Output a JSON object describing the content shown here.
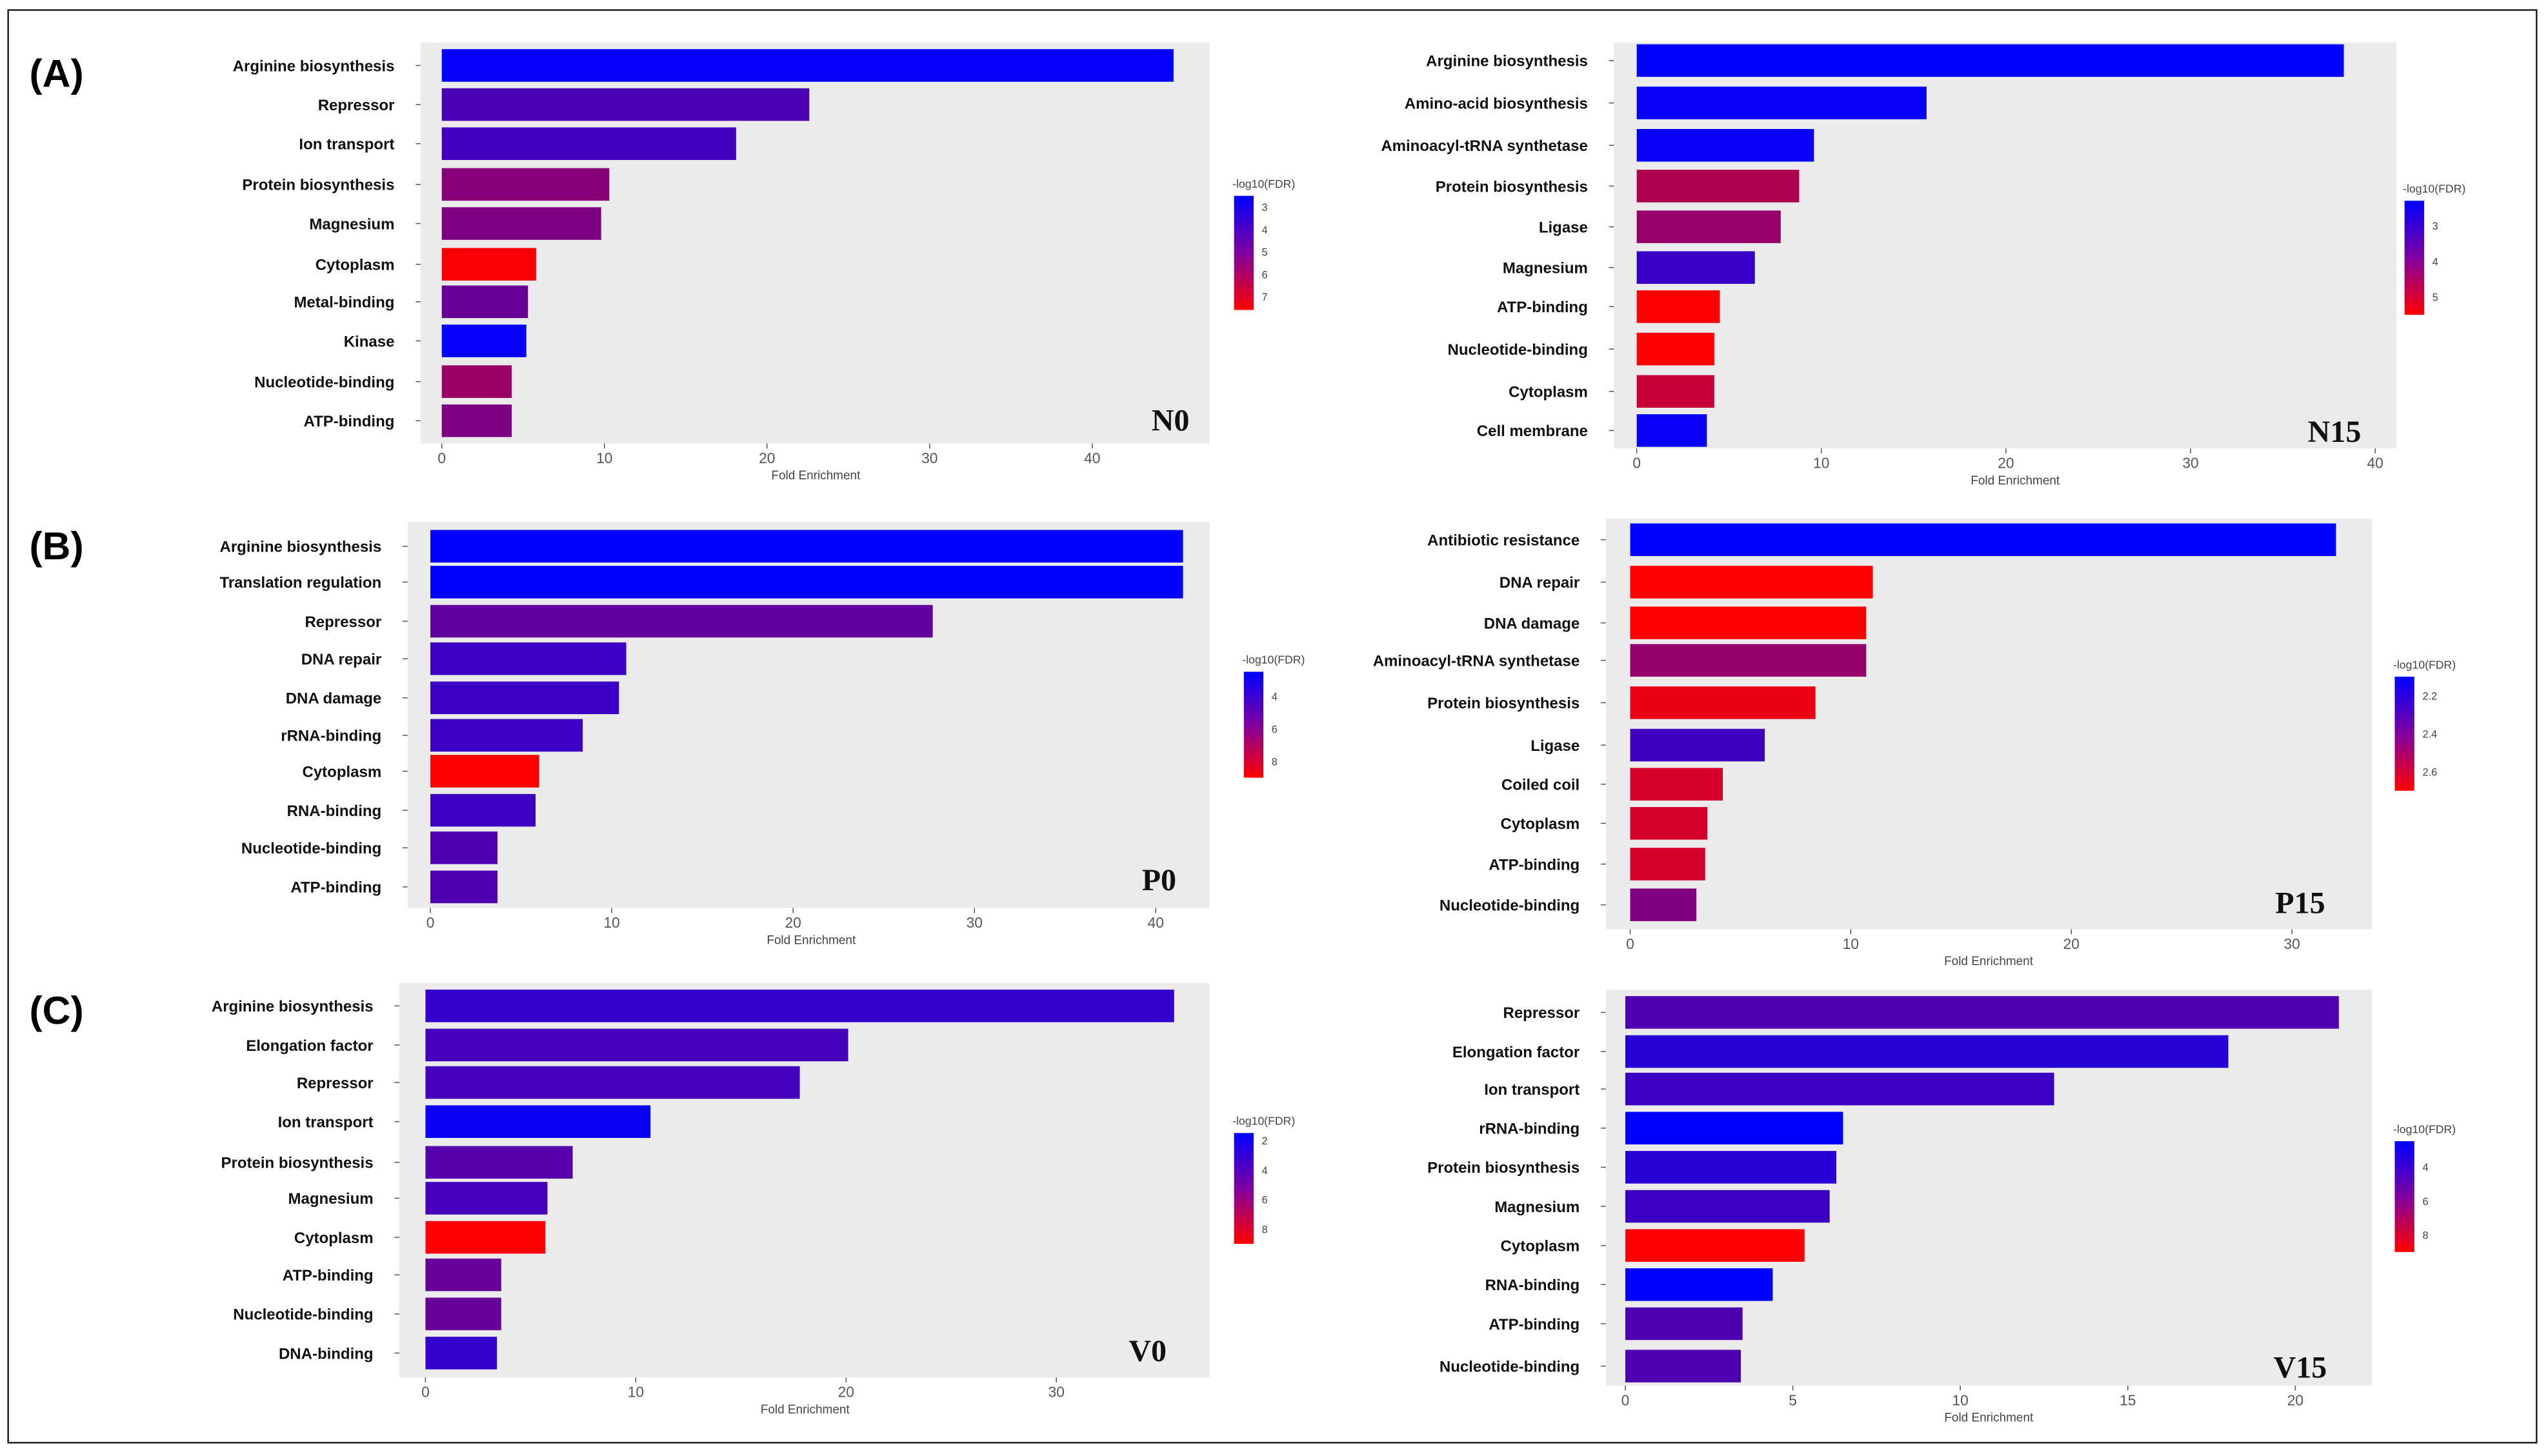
{
  "sections": [
    "(A)",
    "(B)",
    "(C)"
  ],
  "legend_title": "-log10(FDR)",
  "colors": {
    "low": "#0000ff",
    "high": "#ff0000",
    "panel_bg": "#ebebeb"
  },
  "chart_data": [
    {
      "type": "bar",
      "orientation": "horizontal",
      "tag": "N0",
      "xlabel": "Fold Enrichment",
      "xticks": [
        0,
        10,
        20,
        30,
        40
      ],
      "xlim": [
        -1,
        47
      ],
      "legend": {
        "title": "-log10(FDR)",
        "range": [
          2.5,
          7.6
        ],
        "ticks": [
          3,
          4,
          5,
          6,
          7
        ]
      },
      "categories": [
        "Arginine biosynthesis",
        "Repressor",
        "Ion transport",
        "Protein biosynthesis",
        "Magnesium",
        "Cytoplasm",
        "Metal-binding",
        "Kinase",
        "Nucleotide-binding",
        "ATP-binding"
      ],
      "values": [
        45.0,
        22.6,
        18.1,
        10.3,
        9.8,
        5.8,
        5.3,
        5.2,
        4.3,
        4.3
      ],
      "color_values": [
        2.6,
        4.0,
        3.8,
        5.2,
        5.0,
        7.5,
        4.6,
        2.6,
        5.6,
        5.0
      ]
    },
    {
      "type": "bar",
      "orientation": "horizontal",
      "tag": "N15",
      "xlabel": "Fold Enrichment",
      "xticks": [
        0,
        10,
        20,
        30,
        40
      ],
      "xlim": [
        -1,
        42
      ],
      "legend": {
        "title": "-log10(FDR)",
        "range": [
          2.3,
          5.5
        ],
        "ticks": [
          3,
          4,
          5
        ]
      },
      "categories": [
        "Arginine biosynthesis",
        "Amino-acid biosynthesis",
        "Aminoacyl-tRNA synthetase",
        "Protein biosynthesis",
        "Ligase",
        "Magnesium",
        "ATP-binding",
        "Nucleotide-binding",
        "Cytoplasm",
        "Cell membrane"
      ],
      "values": [
        38.3,
        15.7,
        9.6,
        8.8,
        7.8,
        6.4,
        4.5,
        4.2,
        4.2,
        3.8
      ],
      "color_values": [
        2.3,
        2.4,
        2.4,
        4.5,
        4.2,
        3.0,
        5.5,
        5.5,
        4.8,
        2.4
      ]
    },
    {
      "type": "bar",
      "orientation": "horizontal",
      "tag": "P0",
      "xlabel": "Fold Enrichment",
      "xticks": [
        0,
        10,
        20,
        30,
        40
      ],
      "xlim": [
        -1,
        43
      ],
      "legend": {
        "title": "-log10(FDR)",
        "range": [
          2.5,
          9.0
        ],
        "ticks": [
          4,
          6,
          8
        ]
      },
      "categories": [
        "Arginine biosynthesis",
        "Translation regulation",
        "Repressor",
        "DNA repair",
        "DNA damage",
        "rRNA-binding",
        "Cytoplasm",
        "RNA-binding",
        "Nucleotide-binding",
        "ATP-binding"
      ],
      "values": [
        41.5,
        41.5,
        27.7,
        10.8,
        10.4,
        8.4,
        6.0,
        5.8,
        3.7,
        3.7
      ],
      "color_values": [
        2.5,
        2.5,
        5.0,
        4.0,
        4.0,
        4.0,
        9.0,
        4.0,
        4.5,
        4.5
      ]
    },
    {
      "type": "bar",
      "orientation": "horizontal",
      "tag": "P15",
      "xlabel": "Fold Enrichment",
      "xticks": [
        0,
        10,
        20,
        30
      ],
      "xlim": [
        -1,
        33.5
      ],
      "legend": {
        "title": "-log10(FDR)",
        "range": [
          2.1,
          2.7
        ],
        "ticks": [
          2.2,
          2.4,
          2.6
        ]
      },
      "categories": [
        "Antibiotic resistance",
        "DNA repair",
        "DNA damage",
        "Aminoacyl-tRNA synthetase",
        "Protein biosynthesis",
        "Ligase",
        "Coiled coil",
        "Cytoplasm",
        "ATP-binding",
        "Nucleotide-binding"
      ],
      "values": [
        32.0,
        11.0,
        10.7,
        10.7,
        8.4,
        6.1,
        4.2,
        3.5,
        3.4,
        3.0
      ],
      "color_values": [
        2.1,
        2.7,
        2.7,
        2.45,
        2.65,
        2.25,
        2.6,
        2.6,
        2.6,
        2.4
      ]
    },
    {
      "type": "bar",
      "orientation": "horizontal",
      "tag": "V0",
      "xlabel": "Fold Enrichment",
      "xticks": [
        0,
        10,
        20,
        30
      ],
      "xlim": [
        -1.2,
        37.3
      ],
      "legend": {
        "title": "-log10(FDR)",
        "range": [
          1.5,
          9.0
        ],
        "ticks": [
          2,
          4,
          6,
          8
        ]
      },
      "categories": [
        "Arginine biosynthesis",
        "Elongation factor",
        "Repressor",
        "Ion transport",
        "Protein biosynthesis",
        "Magnesium",
        "Cytoplasm",
        "ATP-binding",
        "Nucleotide-binding",
        "DNA-binding"
      ],
      "values": [
        35.6,
        20.1,
        17.8,
        10.7,
        7.0,
        5.8,
        5.7,
        3.6,
        3.6,
        3.4
      ],
      "color_values": [
        3.0,
        3.5,
        3.5,
        1.8,
        4.0,
        3.5,
        9.0,
        4.5,
        4.5,
        3.0
      ]
    },
    {
      "type": "bar",
      "orientation": "horizontal",
      "tag": "V15",
      "xlabel": "Fold Enrichment",
      "xticks": [
        0,
        5,
        10,
        15,
        20
      ],
      "xlim": [
        -0.6,
        22.3
      ],
      "legend": {
        "title": "-log10(FDR)",
        "range": [
          2.5,
          9.0
        ],
        "ticks": [
          4,
          6,
          8
        ]
      },
      "categories": [
        "Repressor",
        "Elongation factor",
        "Ion transport",
        "rRNA-binding",
        "Protein biosynthesis",
        "Magnesium",
        "Cytoplasm",
        "RNA-binding",
        "ATP-binding",
        "Nucleotide-binding"
      ],
      "values": [
        21.3,
        18.0,
        12.8,
        6.5,
        6.3,
        6.1,
        5.35,
        4.4,
        3.5,
        3.45
      ],
      "color_values": [
        4.5,
        3.5,
        4.0,
        2.5,
        3.5,
        4.0,
        9.0,
        2.5,
        4.5,
        4.5
      ]
    }
  ]
}
